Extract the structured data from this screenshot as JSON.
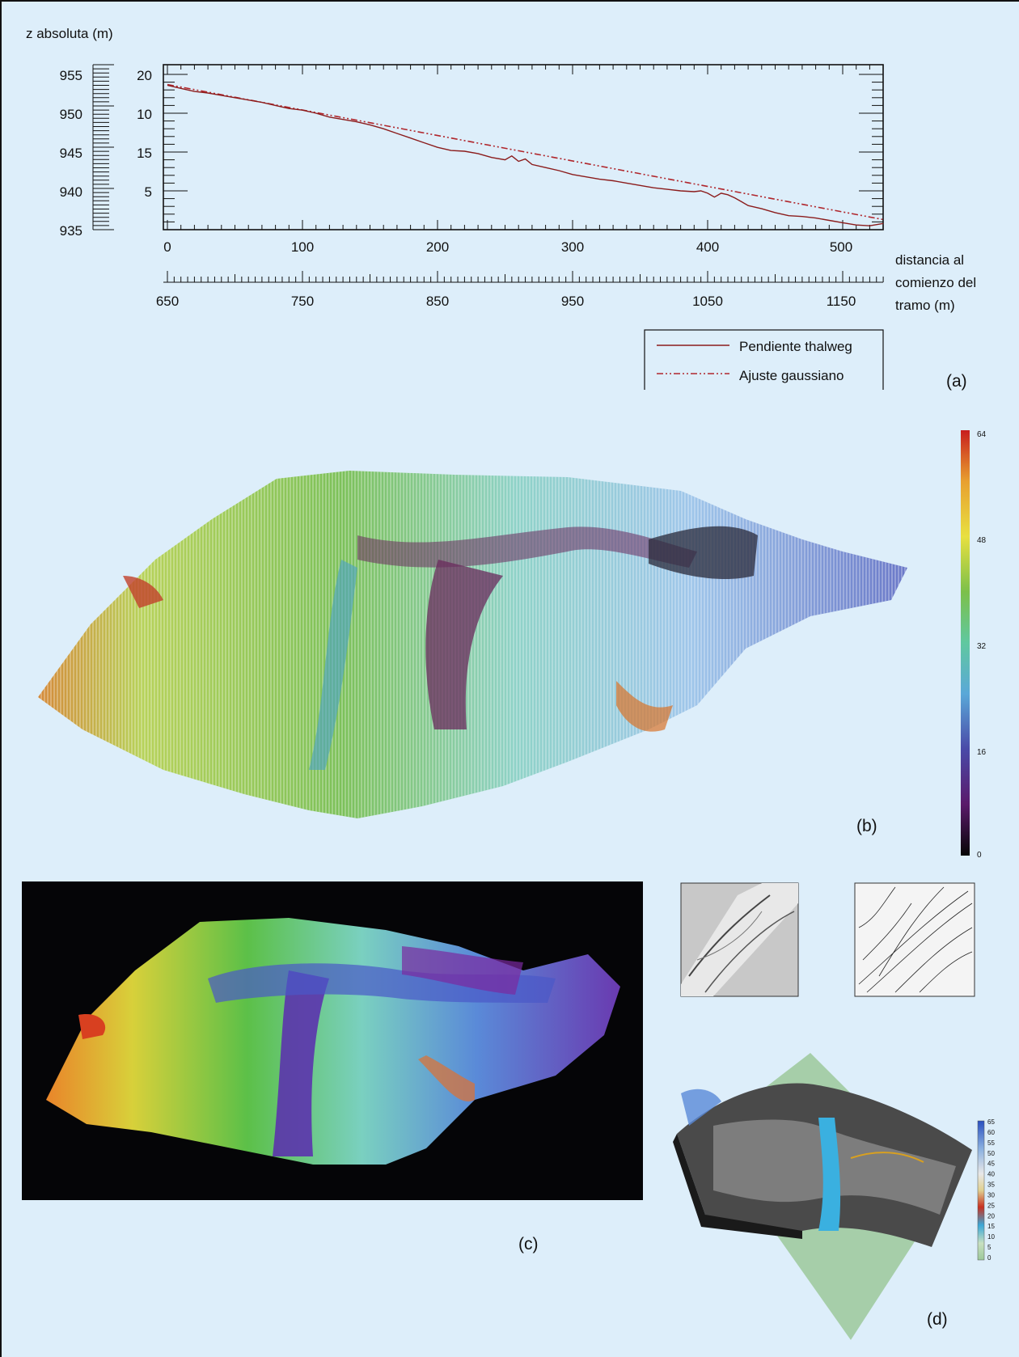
{
  "figure": {
    "panel_a_tag": "(a)",
    "panel_b_tag": "(b)",
    "panel_c_tag": "(c)",
    "panel_d_tag": "(d)",
    "colorbar_b_ticks": [
      "64",
      "48",
      "32",
      "16",
      "0"
    ],
    "colorbar_d_ticks": [
      "65",
      "60",
      "55",
      "50",
      "45",
      "40",
      "35",
      "30",
      "25",
      "20",
      "15",
      "10",
      "5",
      "0"
    ],
    "colors": {
      "background": "#ddeefa",
      "thalweg": "#8b1c1c",
      "gauss": "#b0262c",
      "frame": "#111111"
    }
  },
  "chart_data": [
    {
      "type": "line",
      "ylabel": "z absoluta (m)",
      "xlabel": "distancia al comienzo del tramo (m)",
      "xlabel_lines": [
        "distancia al",
        "comienzo del",
        "tramo (m)"
      ],
      "xlim": [
        0,
        530
      ],
      "x_ticks": [
        "0",
        "100",
        "200",
        "300",
        "400",
        "500"
      ],
      "x2_ticks": [
        "650",
        "750",
        "850",
        "950",
        "1050",
        "1150"
      ],
      "ylim": [
        0,
        21
      ],
      "y_ticks": [
        "5",
        "10",
        "15",
        "20"
      ],
      "y2_ticks": [
        "955",
        "950",
        "945",
        "940",
        "935"
      ],
      "legend_position": "bottom-right",
      "series": [
        {
          "name": "Pendiente thalweg",
          "x": [
            0,
            10,
            20,
            30,
            40,
            50,
            60,
            70,
            80,
            90,
            100,
            110,
            120,
            130,
            140,
            150,
            160,
            170,
            180,
            190,
            200,
            210,
            220,
            230,
            240,
            250,
            255,
            260,
            265,
            270,
            280,
            290,
            300,
            310,
            320,
            330,
            340,
            350,
            360,
            370,
            380,
            390,
            395,
            400,
            405,
            410,
            415,
            420,
            425,
            430,
            440,
            450,
            460,
            470,
            480,
            490,
            500,
            510,
            520,
            530
          ],
          "values": [
            18.6,
            18.2,
            17.8,
            17.6,
            17.3,
            17.0,
            16.7,
            16.4,
            16.0,
            15.6,
            15.4,
            15.0,
            14.5,
            14.2,
            13.9,
            13.5,
            13.0,
            12.4,
            11.8,
            11.2,
            10.6,
            10.2,
            10.1,
            9.8,
            9.3,
            9.0,
            9.5,
            8.8,
            9.1,
            8.4,
            8.0,
            7.6,
            7.1,
            6.8,
            6.5,
            6.3,
            6.0,
            5.7,
            5.4,
            5.2,
            5.0,
            4.9,
            5.0,
            4.7,
            4.2,
            4.7,
            4.5,
            4.1,
            3.6,
            3.1,
            2.7,
            2.2,
            1.8,
            1.7,
            1.5,
            1.2,
            0.9,
            0.6,
            0.5,
            0.8
          ]
        },
        {
          "name": "Ajuste gaussiano",
          "x": [
            0,
            530
          ],
          "values": [
            18.7,
            1.3
          ]
        }
      ]
    }
  ]
}
